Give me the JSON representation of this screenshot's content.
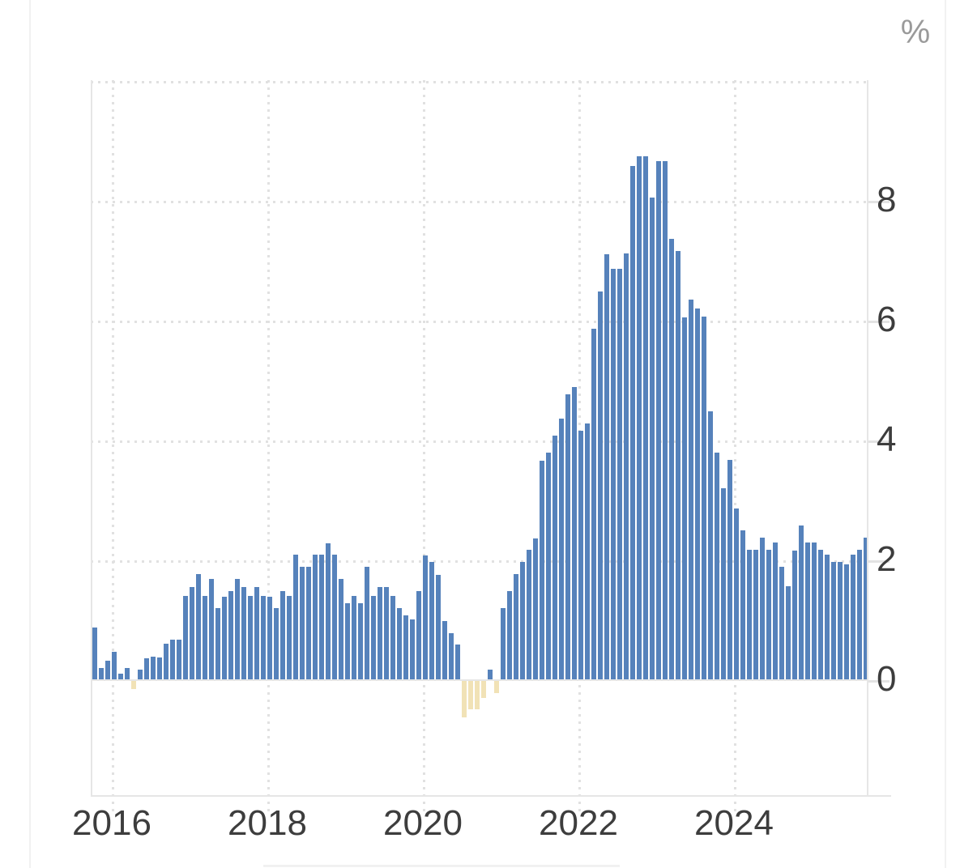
{
  "chart_data": {
    "type": "bar",
    "title": "",
    "unit_label": "%",
    "x_tick_labels": [
      "2016",
      "2018",
      "2020",
      "2022",
      "2024"
    ],
    "y_tick_labels": [
      "0",
      "2",
      "4",
      "6",
      "8"
    ],
    "y_tick_values": [
      0,
      2,
      4,
      6,
      8
    ],
    "ylim": [
      -1.95,
      10.0
    ],
    "grid": "dotted",
    "legend": "none",
    "bar_colors": {
      "positive": "#5682BB",
      "negative": "#F1E2B6"
    },
    "x": [
      "2015-10",
      "2015-11",
      "2015-12",
      "2016-01",
      "2016-02",
      "2016-03",
      "2016-04",
      "2016-05",
      "2016-06",
      "2016-07",
      "2016-08",
      "2016-09",
      "2016-10",
      "2016-11",
      "2016-12",
      "2017-01",
      "2017-02",
      "2017-03",
      "2017-04",
      "2017-05",
      "2017-06",
      "2017-07",
      "2017-08",
      "2017-09",
      "2017-10",
      "2017-11",
      "2017-12",
      "2018-01",
      "2018-02",
      "2018-03",
      "2018-04",
      "2018-05",
      "2018-06",
      "2018-07",
      "2018-08",
      "2018-09",
      "2018-10",
      "2018-11",
      "2018-12",
      "2019-01",
      "2019-02",
      "2019-03",
      "2019-04",
      "2019-05",
      "2019-06",
      "2019-07",
      "2019-08",
      "2019-09",
      "2019-10",
      "2019-11",
      "2019-12",
      "2020-01",
      "2020-02",
      "2020-03",
      "2020-04",
      "2020-05",
      "2020-06",
      "2020-07",
      "2020-08",
      "2020-09",
      "2020-10",
      "2020-11",
      "2020-12",
      "2021-01",
      "2021-02",
      "2021-03",
      "2021-04",
      "2021-05",
      "2021-06",
      "2021-07",
      "2021-08",
      "2021-09",
      "2021-10",
      "2021-11",
      "2021-12",
      "2022-01",
      "2022-02",
      "2022-03",
      "2022-04",
      "2022-05",
      "2022-06",
      "2022-07",
      "2022-08",
      "2022-09",
      "2022-10",
      "2022-11",
      "2022-12",
      "2023-01",
      "2023-02",
      "2023-03",
      "2023-04",
      "2023-05",
      "2023-06",
      "2023-07",
      "2023-08",
      "2023-09",
      "2023-10",
      "2023-11",
      "2023-12",
      "2024-01",
      "2024-02",
      "2024-03",
      "2024-04",
      "2024-05",
      "2024-06",
      "2024-07",
      "2024-08",
      "2024-09",
      "2024-10",
      "2024-11",
      "2024-12",
      "2025-01",
      "2025-02",
      "2025-03",
      "2025-04",
      "2025-05",
      "2025-06",
      "2025-07",
      "2025-08",
      "2025-09"
    ],
    "values": [
      0.88,
      0.2,
      0.32,
      0.47,
      0.11,
      0.2,
      -0.13,
      0.18,
      0.36,
      0.39,
      0.38,
      0.61,
      0.67,
      0.67,
      1.4,
      1.56,
      1.77,
      1.4,
      1.69,
      1.2,
      1.39,
      1.48,
      1.69,
      1.56,
      1.4,
      1.56,
      1.4,
      1.39,
      1.2,
      1.48,
      1.4,
      2.09,
      1.89,
      1.89,
      2.09,
      2.09,
      2.28,
      2.09,
      1.69,
      1.28,
      1.4,
      1.28,
      1.89,
      1.4,
      1.56,
      1.56,
      1.4,
      1.2,
      1.08,
      1.01,
      1.48,
      2.08,
      1.97,
      1.75,
      0.98,
      0.78,
      0.59,
      -0.61,
      -0.47,
      -0.47,
      -0.28,
      0.18,
      -0.2,
      1.2,
      1.48,
      1.77,
      1.97,
      2.17,
      2.36,
      3.66,
      3.8,
      4.08,
      4.36,
      4.77,
      4.89,
      4.16,
      4.28,
      5.86,
      6.49,
      7.11,
      6.86,
      6.86,
      7.12,
      8.58,
      8.74,
      8.74,
      8.05,
      8.66,
      8.66,
      7.36,
      7.16,
      6.06,
      6.35,
      6.2,
      6.07,
      4.49,
      3.8,
      3.2,
      3.67,
      2.87,
      2.5,
      2.18,
      2.18,
      2.38,
      2.18,
      2.3,
      1.89,
      1.57,
      2.16,
      2.58,
      2.3,
      2.3,
      2.18,
      2.09,
      1.97,
      1.97,
      1.93,
      2.09,
      2.18,
      2.38
    ]
  }
}
